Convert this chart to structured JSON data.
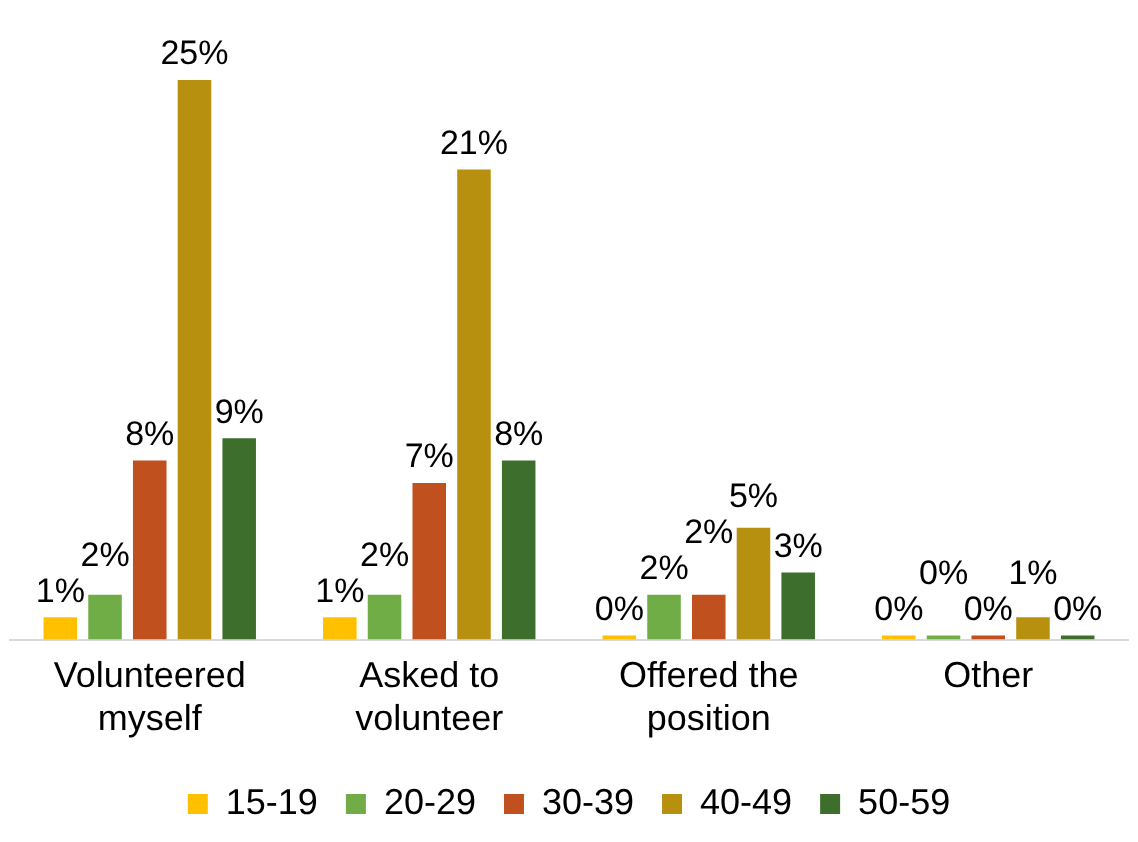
{
  "chart_data": {
    "type": "bar",
    "categories": [
      "Volunteered\nmyself",
      "Asked to\nvolunteer",
      "Offered the\nposition",
      "Other"
    ],
    "series": [
      {
        "name": "15-19",
        "color": "#ffc000",
        "values": [
          1,
          1,
          0,
          0
        ],
        "value_labels": [
          "1%",
          "1%",
          "0%",
          "0%"
        ]
      },
      {
        "name": "20-29",
        "color": "#70ad47",
        "values": [
          2,
          2,
          2,
          0
        ],
        "value_labels": [
          "2%",
          "2%",
          "2%",
          "0%"
        ]
      },
      {
        "name": "30-39",
        "color": "#c0501e",
        "values": [
          8,
          7,
          2,
          0
        ],
        "value_labels": [
          "8%",
          "7%",
          "2%",
          "0%"
        ]
      },
      {
        "name": "40-49",
        "color": "#b8900f",
        "values": [
          25,
          21,
          5,
          1
        ],
        "value_labels": [
          "25%",
          "21%",
          "5%",
          "1%"
        ]
      },
      {
        "name": "50-59",
        "color": "#3e6e2c",
        "values": [
          9,
          8,
          3,
          0
        ],
        "value_labels": [
          "9%",
          "8%",
          "3%",
          "0%"
        ]
      }
    ],
    "grid": false,
    "legend": "bottom"
  }
}
